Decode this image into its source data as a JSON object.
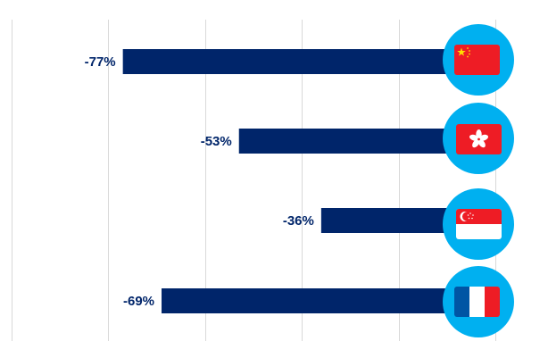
{
  "chart_data": {
    "type": "bar",
    "orientation": "horizontal",
    "categories": [
      "China",
      "Hong Kong",
      "Singapore",
      "France"
    ],
    "values": [
      -77,
      -53,
      -36,
      -69
    ],
    "value_labels": [
      "-77%",
      "-53%",
      "-36%",
      "-69%"
    ],
    "xlim": [
      -100,
      0
    ],
    "x_gridlines": [
      -100,
      -80,
      -60,
      -40,
      -20,
      0
    ],
    "grid": true,
    "legend": "none",
    "category_icons": [
      "china-flag-icon",
      "hong-kong-flag-icon",
      "singapore-flag-icon",
      "france-flag-icon"
    ]
  },
  "colors": {
    "bar": "#00256a",
    "label": "#00256a",
    "grid": "#d9d9d9",
    "icon_circle": "#00b0f0",
    "flag_red": "#ee1c25",
    "flag_yellow": "#ffde00",
    "flag_white": "#ffffff",
    "flag_blue": "#0055a4"
  }
}
